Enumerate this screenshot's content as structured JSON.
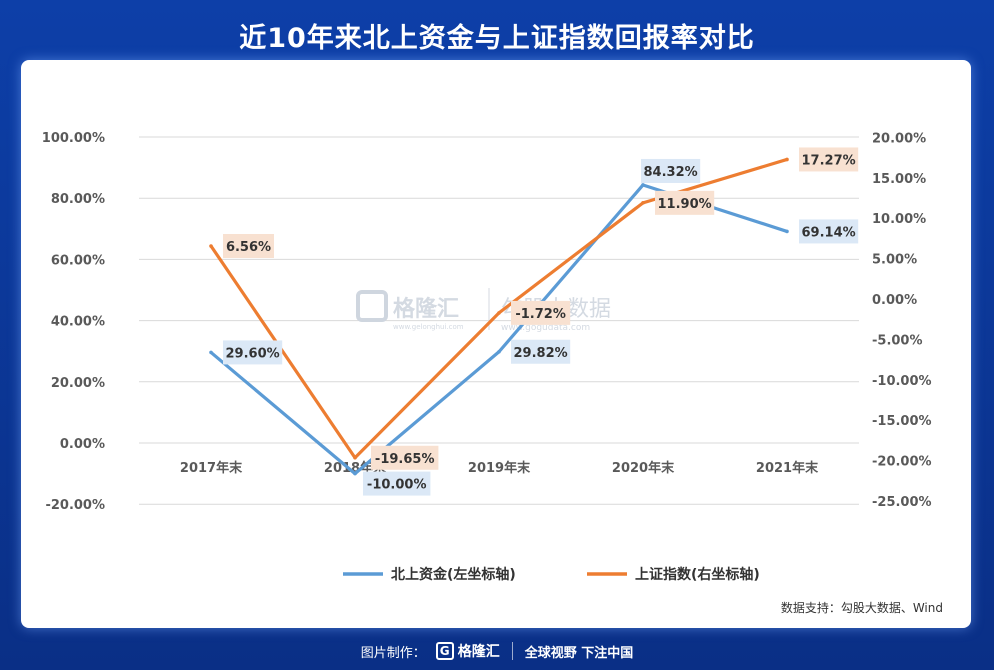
{
  "header": {
    "title": "近10年来北上资金与上证指数回报率对比"
  },
  "chart_data": {
    "type": "line",
    "categories": [
      "2017年末",
      "2018年末",
      "2019年末",
      "2020年末",
      "2021年末"
    ],
    "series": [
      {
        "name": "北上资金(左坐标轴)",
        "axis": "left",
        "color": "#5b9bd5",
        "values": [
          29.6,
          -10.0,
          29.82,
          84.32,
          69.14
        ],
        "labels": [
          "29.60%",
          "-10.00%",
          "29.82%",
          "84.32%",
          "69.14%"
        ]
      },
      {
        "name": "上证指数(右坐标轴)",
        "axis": "right",
        "color": "#ed7d31",
        "values": [
          6.56,
          -19.65,
          -1.72,
          11.9,
          17.27
        ],
        "labels": [
          "6.56%",
          "-19.65%",
          "-1.72%",
          "11.90%",
          "17.27%"
        ]
      }
    ],
    "y_left": {
      "ticks": [
        100,
        80,
        60,
        40,
        20,
        0,
        -20
      ],
      "labels": [
        "100.00%",
        "80.00%",
        "60.00%",
        "40.00%",
        "20.00%",
        "0.00%",
        "-20.00%"
      ]
    },
    "y_right": {
      "ticks": [
        20,
        15,
        10,
        5,
        0,
        -5,
        -10,
        -15,
        -20,
        -25
      ],
      "labels": [
        "20.00%",
        "15.00%",
        "10.00%",
        "5.00%",
        "0.00%",
        "-5.00%",
        "-10.00%",
        "-15.00%",
        "-20.00%",
        "-25.00%"
      ]
    },
    "legend_position": "bottom-center",
    "grid": true,
    "source": "数据支持：勾股大数据、Wind"
  },
  "watermark": {
    "brand": "格隆汇",
    "site": "www.gelonghui.com",
    "brand2": "勾股大数据",
    "site2": "www.gogudata.com"
  },
  "footer": {
    "made_by": "图片制作：",
    "logo_letter": "G",
    "brand": "格隆汇",
    "slogan": "全球视野 下注中国"
  }
}
